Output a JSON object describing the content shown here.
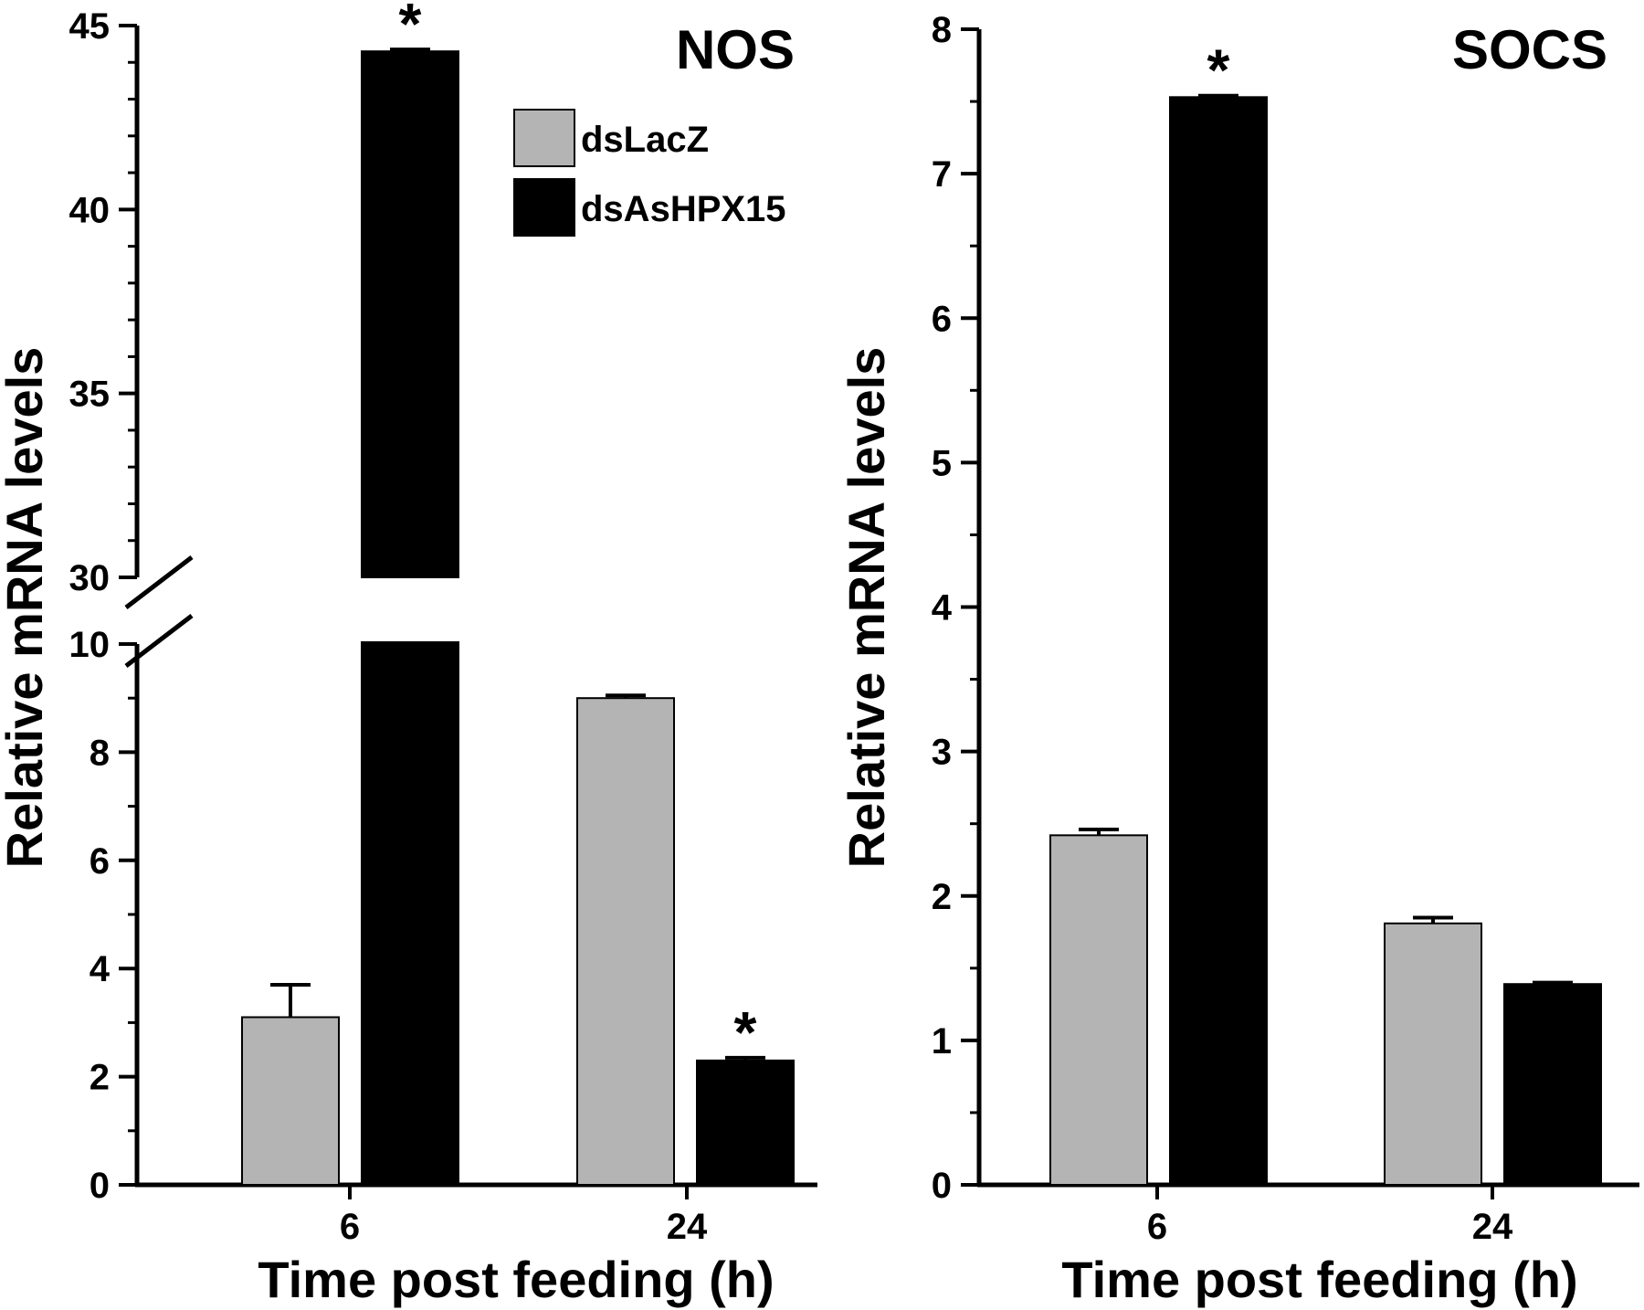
{
  "colors": {
    "dsLacZ": "#b4b4b4",
    "dsAsHPX15": "#000000",
    "axis": "#000000"
  },
  "legend": [
    {
      "name": "dsLacZ",
      "color": "#b4b4b4"
    },
    {
      "name": "dsAsHPX15",
      "color": "#000000"
    }
  ],
  "chart_data": [
    {
      "type": "bar",
      "title": "NOS",
      "xlabel": "Time post feeding (h)",
      "ylabel": "Relative mRNA levels",
      "categories": [
        "6",
        "24"
      ],
      "axis_break": {
        "lower_ylim": [
          0,
          10
        ],
        "upper_ylim": [
          30,
          45
        ]
      },
      "lower_ticks": [
        "0",
        "2",
        "4",
        "6",
        "8",
        "10"
      ],
      "upper_ticks": [
        "30",
        "35",
        "40",
        "45"
      ],
      "series": [
        {
          "name": "dsLacZ",
          "values": [
            3.1,
            9.0
          ],
          "errors": [
            0.6,
            0.05
          ],
          "significant": [
            false,
            false
          ]
        },
        {
          "name": "dsAsHPX15",
          "values": [
            44.3,
            2.3
          ],
          "errors": [
            0.05,
            0.05
          ],
          "significant": [
            true,
            true
          ]
        }
      ],
      "significance_marker": "*",
      "legend_position": "top-center"
    },
    {
      "type": "bar",
      "title": "SOCS",
      "xlabel": "Time post feeding (h)",
      "ylabel": "Relative mRNA levels",
      "categories": [
        "6",
        "24"
      ],
      "ylim": [
        0,
        8
      ],
      "ticks": [
        "0",
        "1",
        "2",
        "3",
        "4",
        "5",
        "6",
        "7",
        "8"
      ],
      "series": [
        {
          "name": "dsLacZ",
          "values": [
            2.42,
            1.81
          ],
          "errors": [
            0.04,
            0.04
          ],
          "significant": [
            false,
            false
          ]
        },
        {
          "name": "dsAsHPX15",
          "values": [
            7.53,
            1.39
          ],
          "errors": [
            0.01,
            0.01
          ],
          "significant": [
            true,
            false
          ]
        }
      ],
      "significance_marker": "*"
    }
  ]
}
